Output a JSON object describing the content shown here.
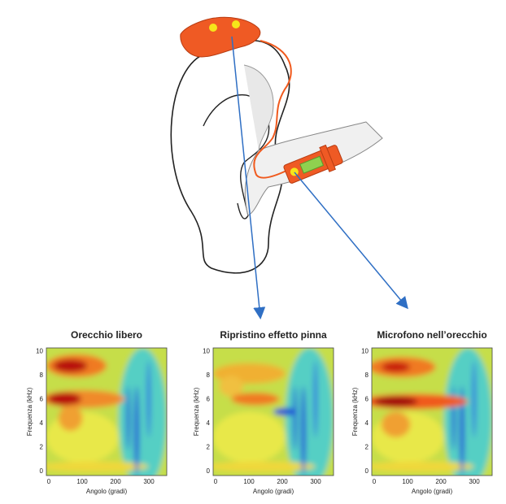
{
  "panels": [
    {
      "title": "Orecchio libero",
      "y_label": "Frequenza (kHz)",
      "x_label": "Angolo (gradi)",
      "y_ticks": [
        0,
        2,
        4,
        6,
        8,
        10
      ],
      "x_ticks": [
        0,
        100,
        200,
        300
      ]
    },
    {
      "title": "Ripristino effetto pinna",
      "y_label": "Frequenza (kHz)",
      "x_label": "Angolo (gradi)",
      "y_ticks": [
        0,
        2,
        4,
        6,
        8,
        10
      ],
      "x_ticks": [
        0,
        100,
        200,
        300
      ]
    },
    {
      "title": "Microfono nell’orecchio",
      "y_label": "Frequenza (kHz)",
      "x_label": "Angolo (gradi)",
      "y_ticks": [
        0,
        2,
        4,
        6,
        8,
        10
      ],
      "x_ticks": [
        0,
        100,
        200,
        300
      ]
    }
  ]
}
